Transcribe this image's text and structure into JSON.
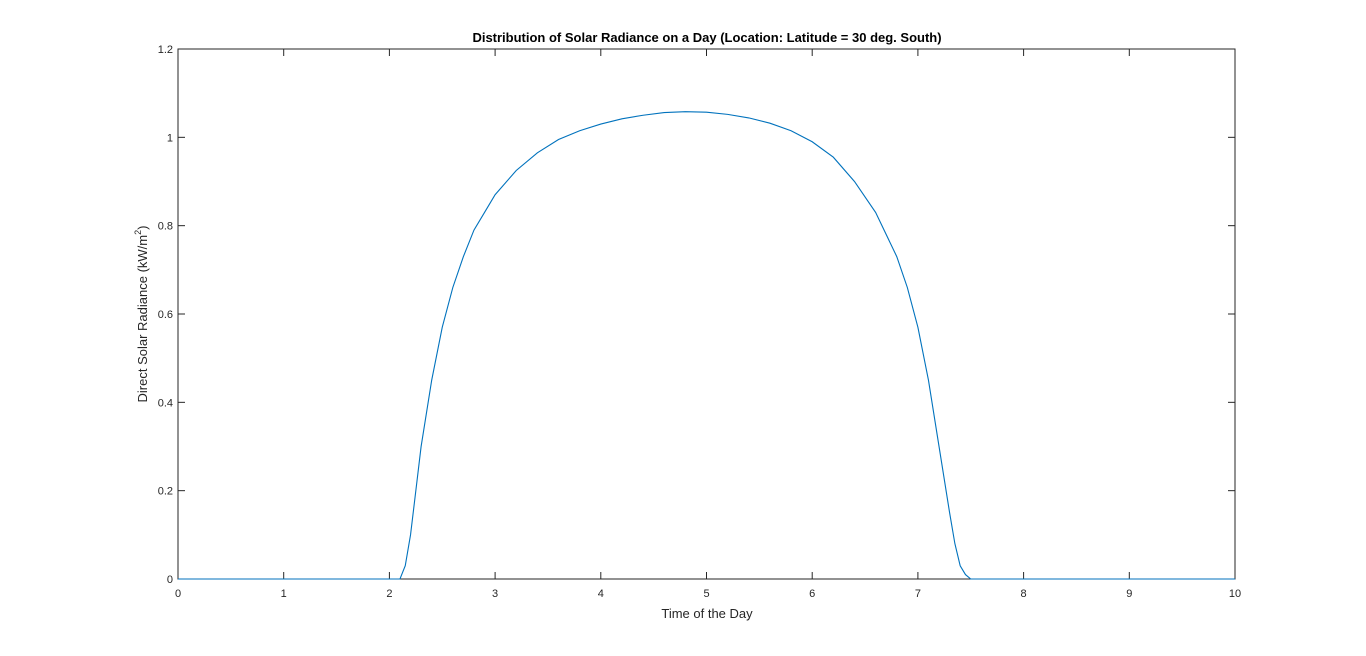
{
  "chart_data": {
    "type": "line",
    "title": "Distribution of Solar Radiance on a Day (Location: Latitude = 30 deg. South)",
    "xlabel": "Time of the Day",
    "ylabel": "Direct Solar Radiance (kW/m",
    "ylabel_superscript": "2",
    "ylabel_close": ")",
    "xlim": [
      0,
      10
    ],
    "ylim": [
      0,
      1.2
    ],
    "xticks": [
      "0",
      "1",
      "2",
      "3",
      "4",
      "5",
      "6",
      "7",
      "8",
      "9",
      "10"
    ],
    "yticks": [
      "0",
      "0.2",
      "0.4",
      "0.6",
      "0.8",
      "1",
      "1.2"
    ],
    "grid": false,
    "line_color": "#0072BD",
    "series": [
      {
        "x": [
          0,
          0.5,
          1,
          1.5,
          2,
          2.1,
          2.15,
          2.2,
          2.25,
          2.3,
          2.4,
          2.5,
          2.6,
          2.7,
          2.8,
          2.9,
          3.0,
          3.2,
          3.4,
          3.6,
          3.8,
          4.0,
          4.2,
          4.4,
          4.6,
          4.8,
          5.0,
          5.2,
          5.4,
          5.6,
          5.8,
          6.0,
          6.2,
          6.4,
          6.6,
          6.8,
          6.9,
          7.0,
          7.1,
          7.2,
          7.3,
          7.35,
          7.4,
          7.45,
          7.5,
          7.55,
          8,
          8.5,
          9,
          9.5,
          10
        ],
        "y": [
          0,
          0,
          0,
          0,
          0,
          0,
          0.03,
          0.1,
          0.2,
          0.3,
          0.45,
          0.57,
          0.66,
          0.73,
          0.79,
          0.83,
          0.87,
          0.925,
          0.965,
          0.995,
          1.015,
          1.03,
          1.042,
          1.05,
          1.056,
          1.058,
          1.057,
          1.052,
          1.044,
          1.032,
          1.015,
          0.99,
          0.955,
          0.9,
          0.83,
          0.73,
          0.66,
          0.57,
          0.45,
          0.3,
          0.15,
          0.08,
          0.03,
          0.01,
          0,
          0,
          0,
          0,
          0,
          0,
          0
        ]
      }
    ]
  }
}
